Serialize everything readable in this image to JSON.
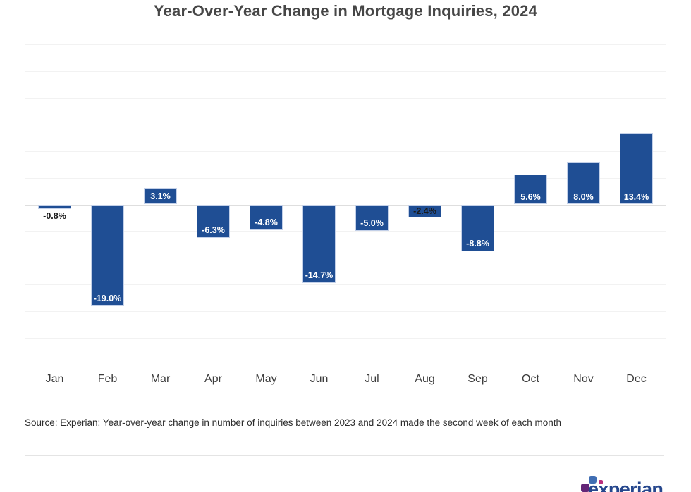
{
  "chart_data": {
    "type": "bar",
    "title": "Year-Over-Year Change in Mortgage Inquiries, 2024",
    "categories": [
      "Jan",
      "Feb",
      "Mar",
      "Apr",
      "May",
      "Jun",
      "Jul",
      "Aug",
      "Sep",
      "Oct",
      "Nov",
      "Dec"
    ],
    "values": [
      -0.8,
      -19.0,
      3.1,
      -6.3,
      -4.8,
      -14.7,
      -5.0,
      -2.4,
      -8.8,
      5.6,
      8.0,
      13.4
    ],
    "value_labels": [
      "-0.8%",
      "-19.0%",
      "3.1%",
      "-6.3%",
      "-4.8%",
      "-14.7%",
      "-5.0%",
      "-2.4%",
      "-8.8%",
      "5.6%",
      "8.0%",
      "13.4%"
    ],
    "xlabel": "",
    "ylabel": "",
    "ylim": [
      -30,
      30
    ],
    "gridline_step": 5,
    "grid": true,
    "legend_position": "none",
    "bar_color": "#1f4e94"
  },
  "source_note": "Source: Experian; Year-over-year change in number of inquiries between 2023 and 2024 made the second week of each month",
  "logo": {
    "wordmark": "experian",
    "colors": {
      "text": "#26478d",
      "purple": "#632678",
      "blue": "#406eb3",
      "magenta": "#ba2f7d"
    }
  }
}
